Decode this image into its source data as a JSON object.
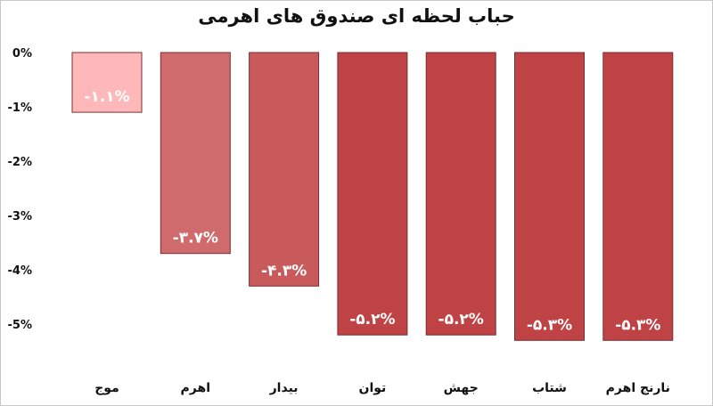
{
  "chart_data": {
    "type": "bar",
    "title": "حباب لحظه ای صندوق های اهرمی",
    "categories": [
      "موج",
      "اهرم",
      "بیدار",
      "توان",
      "جهش",
      "شتاب",
      "نارنج اهرم"
    ],
    "values": [
      -1.1,
      -3.7,
      -4.3,
      -5.2,
      -5.2,
      -5.3,
      -5.3
    ],
    "data_labels": [
      "-۱.۱%",
      "-۳.۷%",
      "-۴.۳%",
      "-۵.۲%",
      "-۵.۲%",
      "-۵.۳%",
      "-۵.۳%"
    ],
    "bar_colors": [
      "#ffb8ba",
      "#d06b6d",
      "#c85a5c",
      "#bf4245",
      "#bf4245",
      "#bf4245",
      "#bf4245"
    ],
    "y_ticks": [
      0,
      -1,
      -2,
      -3,
      -4,
      -5
    ],
    "y_tick_labels": [
      "0%",
      "-1%",
      "-2%",
      "-3%",
      "-4%",
      "-5%"
    ],
    "ylim": [
      -5.3,
      0
    ],
    "xlabel": "",
    "ylabel": "",
    "grid": false,
    "legend": "none"
  }
}
